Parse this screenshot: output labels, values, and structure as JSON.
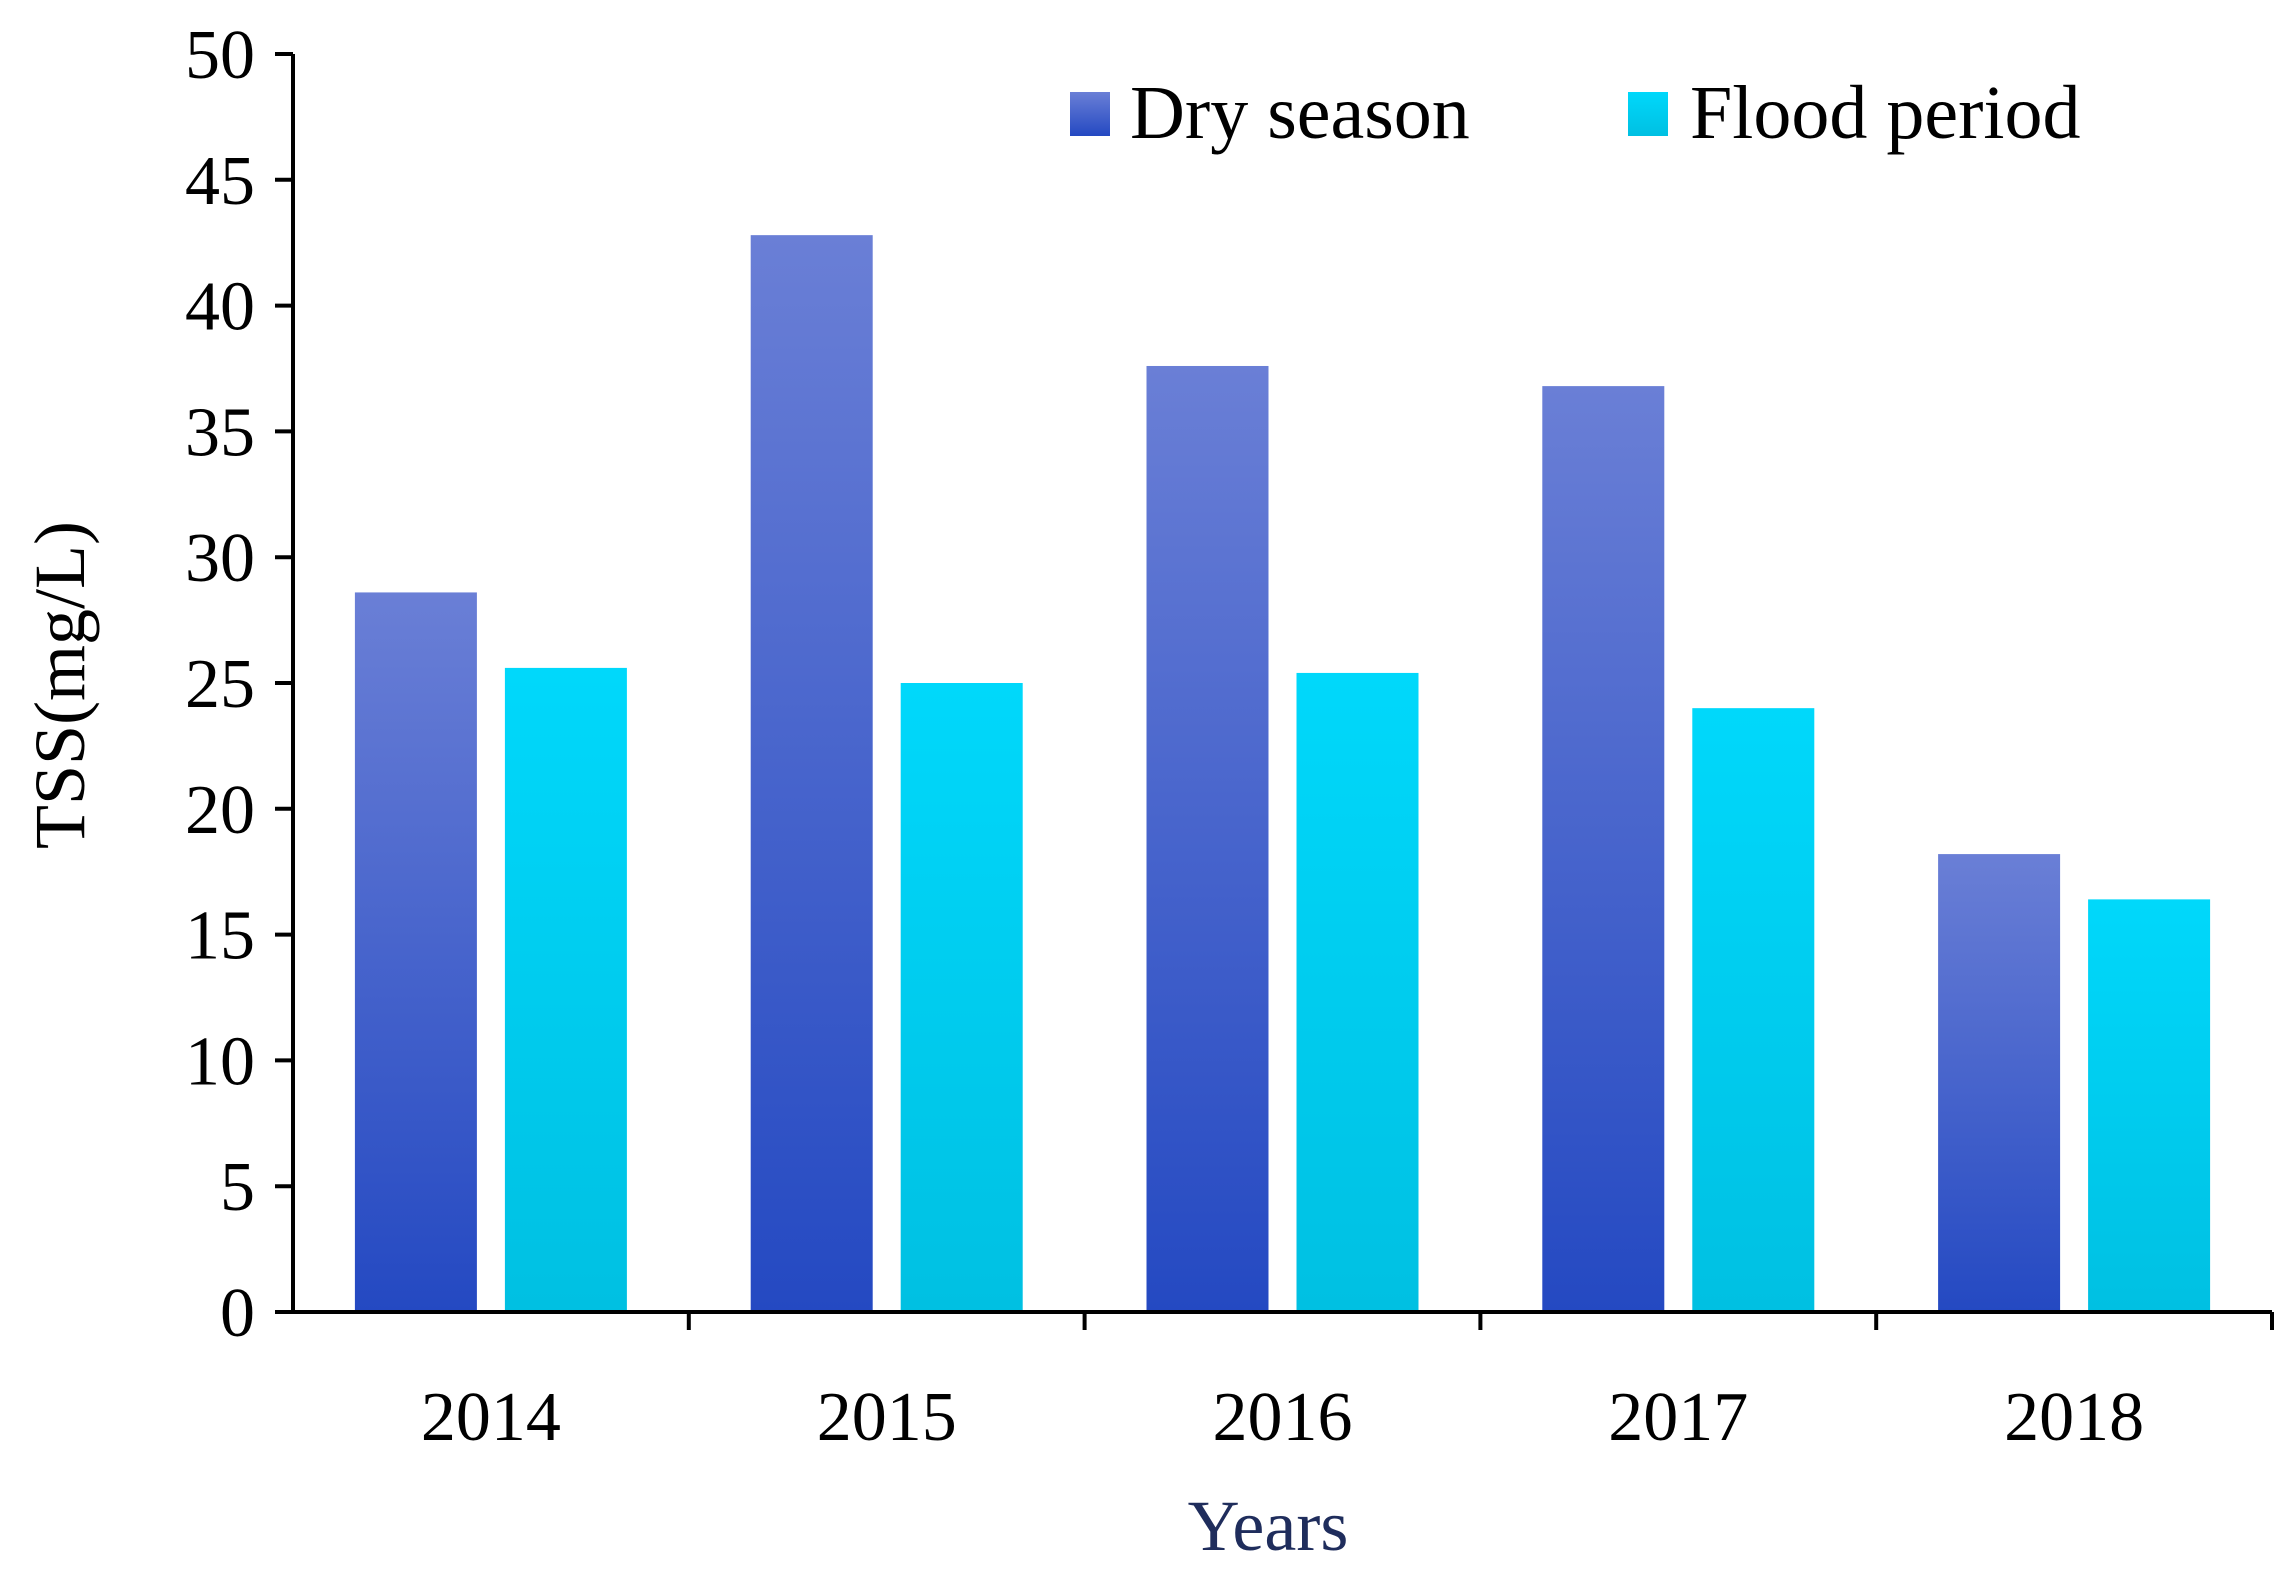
{
  "chart_data": {
    "type": "bar",
    "title": "",
    "xlabel": "Years",
    "ylabel": "TSS(mg/L)",
    "ylim": [
      0,
      50
    ],
    "yticks": [
      0,
      5,
      10,
      15,
      20,
      25,
      30,
      35,
      40,
      45,
      50
    ],
    "categories": [
      "2014",
      "2015",
      "2016",
      "2017",
      "2018"
    ],
    "series": [
      {
        "name": "Dry season",
        "values": [
          28.6,
          42.8,
          37.6,
          36.8,
          18.2
        ]
      },
      {
        "name": "Flood period",
        "values": [
          25.6,
          25.0,
          25.4,
          24.0,
          16.4
        ]
      }
    ],
    "legend_position": "top-right",
    "grid": false,
    "colors": {
      "dry_top": "#6a7fd6",
      "dry_bottom": "#2449c2",
      "flood_top": "#00d8fb",
      "flood_bottom": "#00c0e2",
      "xlabel": "#1f2d5c",
      "axis": "#000000"
    }
  }
}
